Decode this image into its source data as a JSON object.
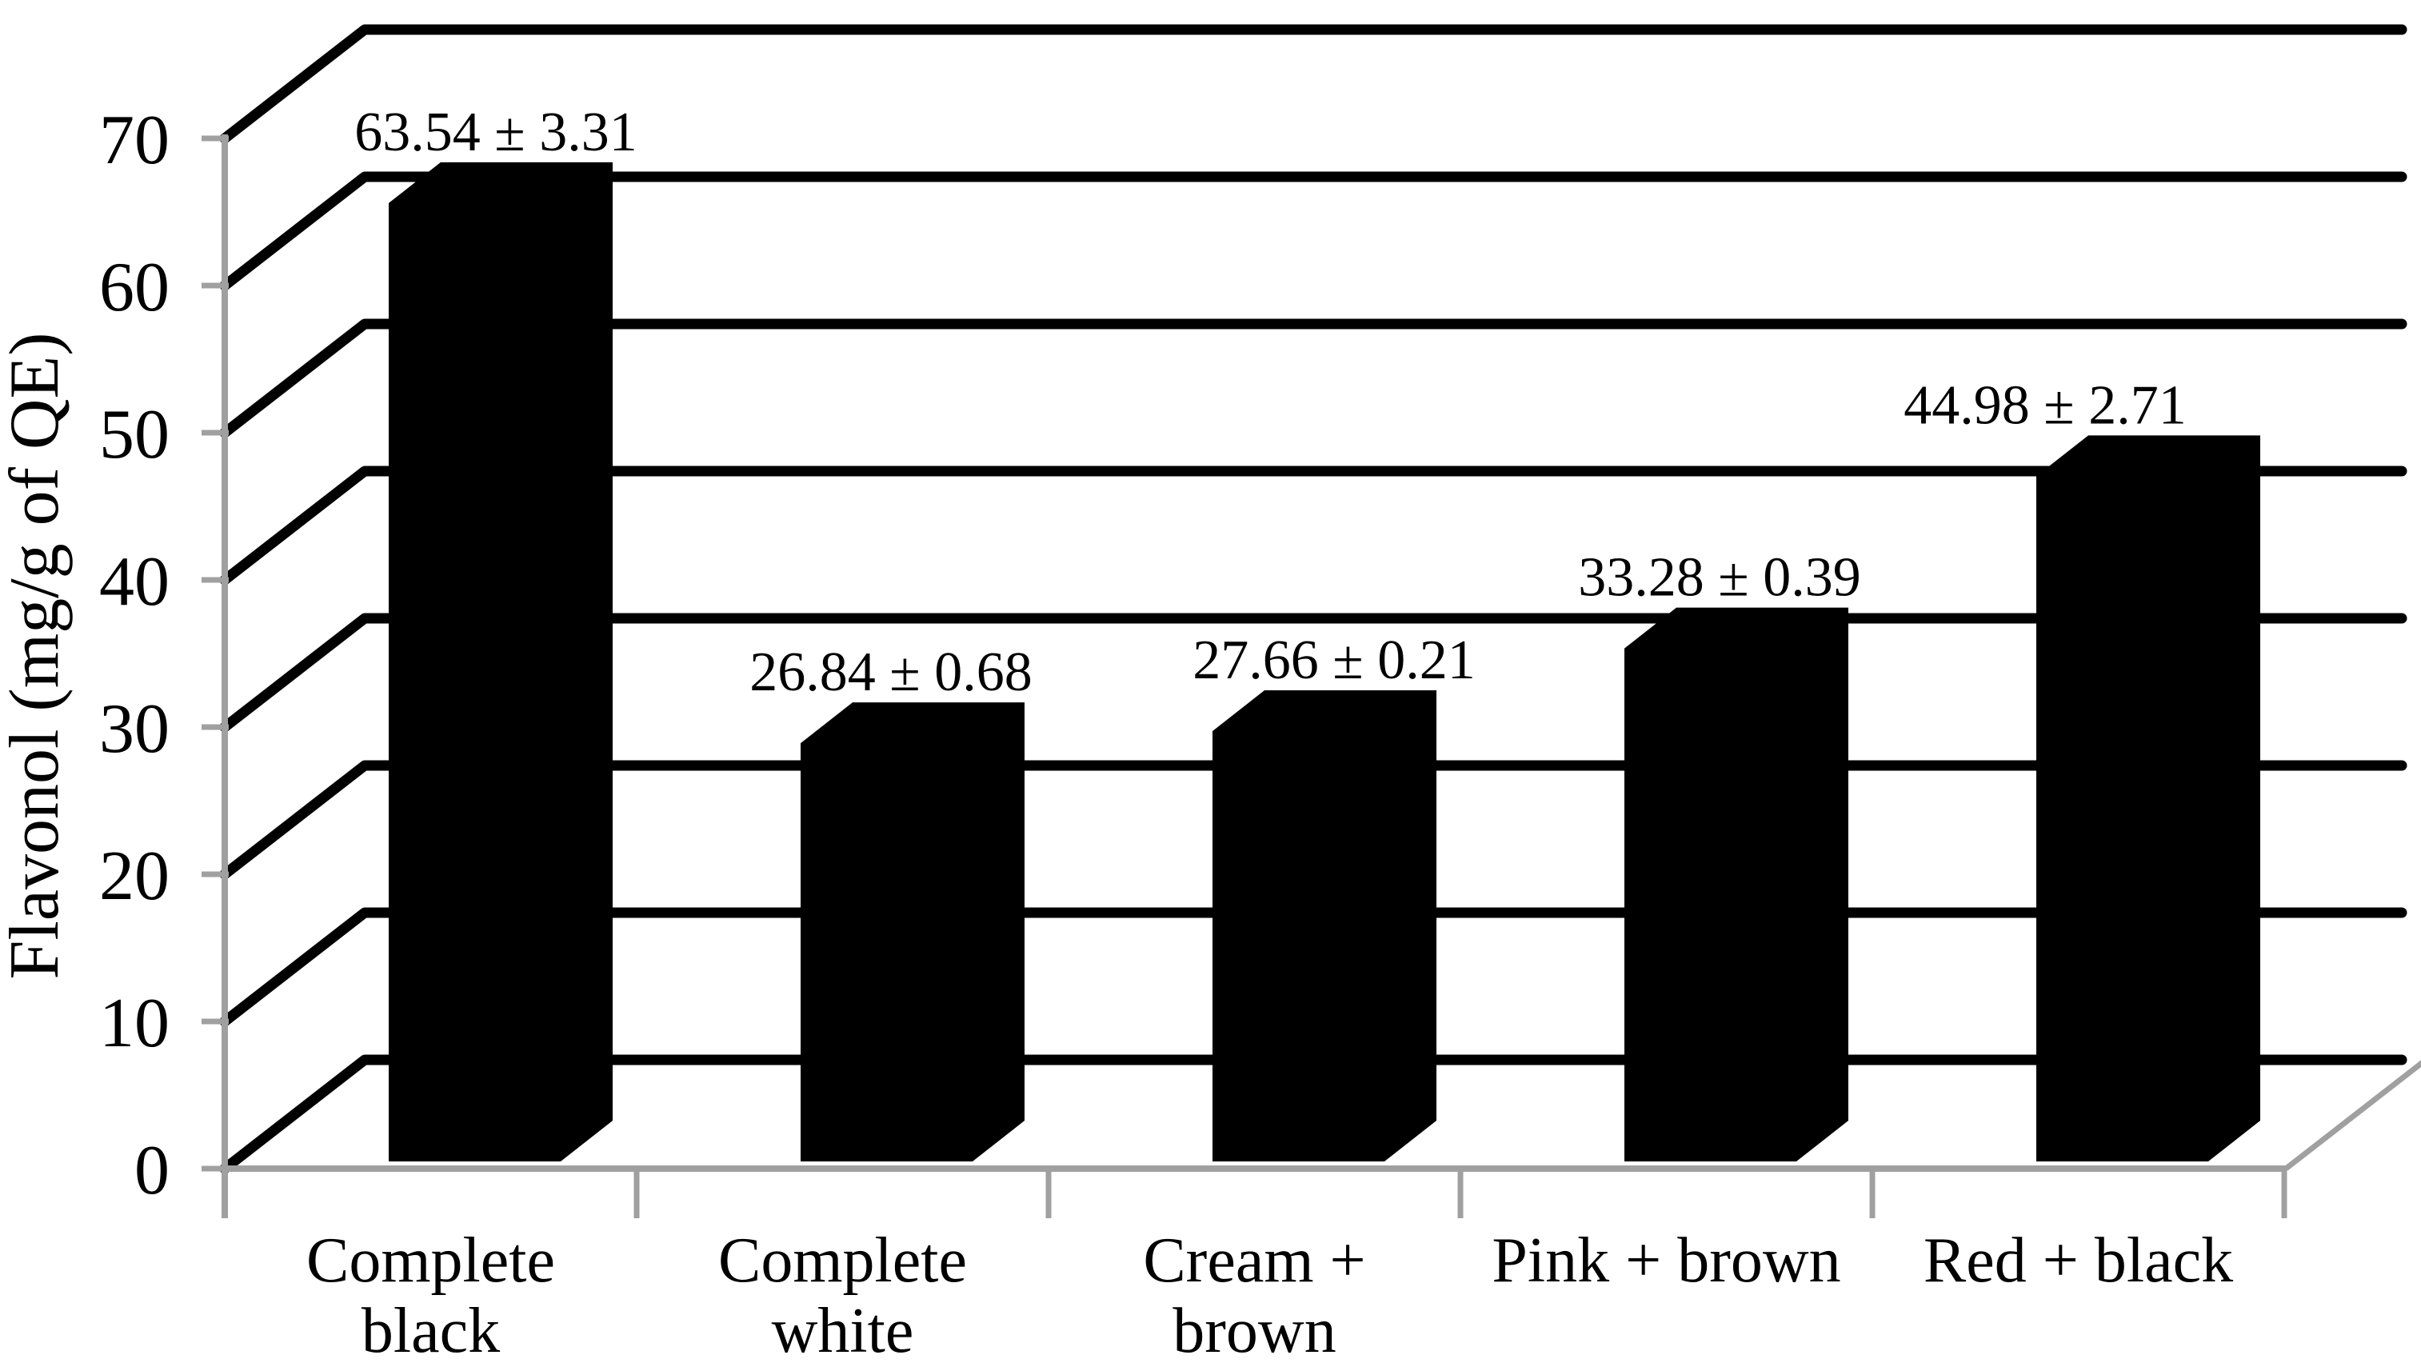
{
  "chart_data": {
    "type": "bar",
    "style": "3d-column",
    "title": "",
    "ylabel": "Flavonol (mg/g of QE)",
    "xlabel": "",
    "ylim": [
      0,
      70
    ],
    "ytick_interval": 10,
    "yticks": [
      0,
      10,
      20,
      30,
      40,
      50,
      60,
      70
    ],
    "grid": true,
    "legend": false,
    "categories": [
      "Complete black",
      "Complete white",
      "Cream + brown",
      "Pink + brown",
      "Red + black"
    ],
    "category_label_lines": [
      [
        "Complete",
        "black"
      ],
      [
        "Complete",
        "white"
      ],
      [
        "Cream +",
        "brown"
      ],
      [
        "Pink + brown"
      ],
      [
        "Red + black"
      ]
    ],
    "values": [
      63.54,
      26.84,
      27.66,
      33.28,
      44.98
    ],
    "errors": [
      3.31,
      0.68,
      0.21,
      0.39,
      2.71
    ],
    "data_labels": [
      "63.54 ± 3.31",
      "26.84 ± 0.68",
      "27.66 ± 0.21",
      "33.28 ± 0.39",
      "44.98 ± 2.71"
    ],
    "bar_color": "#000000",
    "gridline_color": "#000000",
    "axis_color": "#a0a0a0",
    "text_color": "#000000",
    "background_color": "#ffffff"
  }
}
